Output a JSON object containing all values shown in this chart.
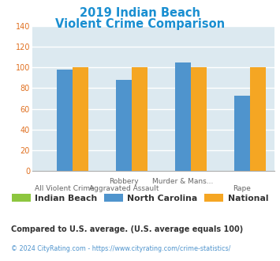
{
  "title_line1": "2019 Indian Beach",
  "title_line2": "Violent Crime Comparison",
  "title_color": "#1a8fd1",
  "groups": [
    {
      "name": "Indian Beach",
      "color": "#8dc63f",
      "values": [
        0,
        0,
        0,
        0
      ]
    },
    {
      "name": "North Carolina",
      "color": "#4f94cd",
      "values": [
        98,
        88,
        105,
        73
      ]
    },
    {
      "name": "National",
      "color": "#f5a623",
      "values": [
        100,
        100,
        100,
        100
      ]
    }
  ],
  "xtick_top": [
    "",
    "Robbery",
    "Murder & Mans...",
    ""
  ],
  "xtick_bottom": [
    "All Violent Crime",
    "Aggravated Assault",
    "",
    "Rape"
  ],
  "ylim": [
    0,
    140
  ],
  "yticks": [
    0,
    20,
    40,
    60,
    80,
    100,
    120,
    140
  ],
  "bg_color": "#dce9f0",
  "grid_color": "#ffffff",
  "footnote": "Compared to U.S. average. (U.S. average equals 100)",
  "footnote_color": "#333333",
  "copyright": "© 2024 CityRating.com - https://www.cityrating.com/crime-statistics/",
  "copyright_color": "#4f94cd",
  "bar_width": 0.27
}
